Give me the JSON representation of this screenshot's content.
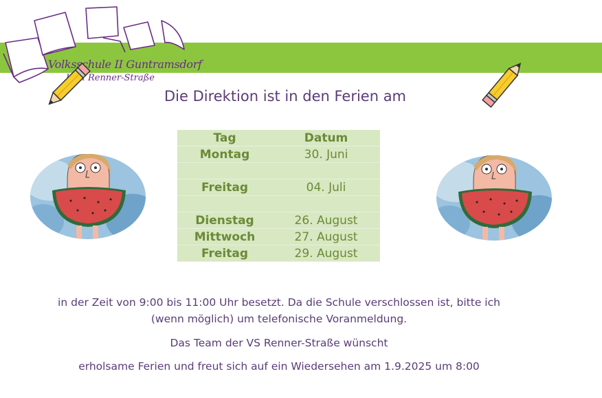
{
  "header": {
    "school_name": "Volksschule II Guntramsdorf",
    "school_sub": "Karl Renner-Straße",
    "band_color": "#8cc63f"
  },
  "title": "Die Direktion ist in den Ferien am",
  "table": {
    "headers": [
      "Tag",
      "Datum"
    ],
    "rows": [
      {
        "day": "Montag",
        "date": "30. Juni"
      },
      {
        "day": "",
        "date": ""
      },
      {
        "day": "Freitag",
        "date": "04. Juli"
      },
      {
        "day": "",
        "date": ""
      },
      {
        "day": "Dienstag",
        "date": "26. August"
      },
      {
        "day": "Mittwoch",
        "date": "27. August"
      },
      {
        "day": "Freitag",
        "date": "29. August"
      }
    ]
  },
  "paragraphs": {
    "line1": "in der Zeit von 9:00 bis 11:00 Uhr besetzt. Da die Schule verschlossen ist, bitte ich",
    "line2": "(wenn möglich) um telefonische Voranmeldung.",
    "line3": "Das Team der VS Renner-Straße wünscht",
    "line4": "erholsame Ferien und freut sich auf ein Wiedersehen am 1.9.2025 um 8:00"
  },
  "icons": {
    "logo": "book-pages-logo",
    "pencil": "pencil-icon",
    "illustration": "watermelon-child-illustration"
  }
}
